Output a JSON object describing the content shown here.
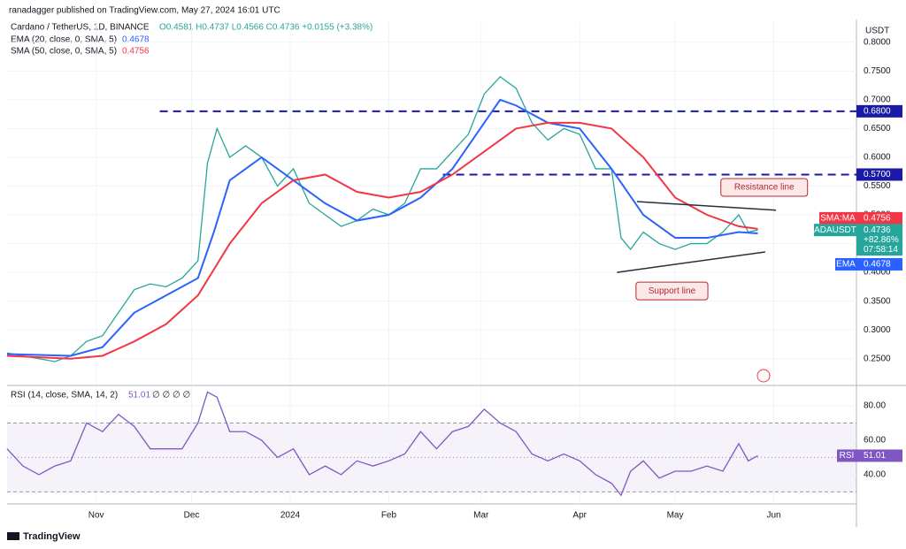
{
  "header": {
    "publisher": "ranadagger published on TradingView.com, May 27, 2024 16:01 UTC",
    "footer": "TradingView"
  },
  "chart_data": [
    {
      "type": "line",
      "title": "Cardano / TetherUS, 1D, BINANCE",
      "ohlc": "O0.4581 H0.4737 L0.4566 C0.4736 +0.0155 (+3.38%)",
      "currency": "USDT",
      "xlim": [
        0,
        267
      ],
      "xticks": [
        {
          "value": 28,
          "label": "Nov"
        },
        {
          "value": 58,
          "label": "Dec"
        },
        {
          "value": 89,
          "label": "2024"
        },
        {
          "value": 120,
          "label": "Feb"
        },
        {
          "value": 149,
          "label": "Mar"
        },
        {
          "value": 180,
          "label": "Apr"
        },
        {
          "value": 210,
          "label": "May"
        },
        {
          "value": 241,
          "label": "Jun"
        }
      ],
      "ylim": [
        0.205,
        0.835
      ],
      "yticks": [
        {
          "value": 0.25,
          "label": "0.2500"
        },
        {
          "value": 0.3,
          "label": "0.3000"
        },
        {
          "value": 0.35,
          "label": "0.3500"
        },
        {
          "value": 0.4,
          "label": "0.4000"
        },
        {
          "value": 0.45,
          "label": "0.4500"
        },
        {
          "value": 0.5,
          "label": "0.5000"
        },
        {
          "value": 0.55,
          "label": "0.5500"
        },
        {
          "value": 0.6,
          "label": "0.6000"
        },
        {
          "value": 0.65,
          "label": "0.6500"
        },
        {
          "value": 0.7,
          "label": "0.7000"
        },
        {
          "value": 0.75,
          "label": "0.7500"
        },
        {
          "value": 0.8,
          "label": "0.8000"
        }
      ],
      "series": [
        {
          "name": "ADAUSDT",
          "color": "#26a69a",
          "x": [
            0,
            5,
            10,
            15,
            20,
            25,
            30,
            35,
            40,
            45,
            50,
            55,
            60,
            63,
            66,
            70,
            75,
            80,
            85,
            90,
            95,
            100,
            105,
            110,
            115,
            120,
            125,
            130,
            135,
            140,
            145,
            150,
            155,
            160,
            165,
            170,
            175,
            180,
            185,
            190,
            193,
            196,
            200,
            205,
            210,
            215,
            220,
            225,
            230,
            233,
            236
          ],
          "values": [
            0.26,
            0.255,
            0.25,
            0.245,
            0.255,
            0.28,
            0.29,
            0.33,
            0.37,
            0.38,
            0.375,
            0.39,
            0.42,
            0.59,
            0.65,
            0.6,
            0.62,
            0.6,
            0.55,
            0.58,
            0.52,
            0.5,
            0.48,
            0.49,
            0.51,
            0.5,
            0.52,
            0.58,
            0.58,
            0.61,
            0.64,
            0.71,
            0.74,
            0.72,
            0.66,
            0.63,
            0.65,
            0.64,
            0.58,
            0.58,
            0.46,
            0.44,
            0.47,
            0.45,
            0.44,
            0.45,
            0.45,
            0.47,
            0.5,
            0.47,
            0.4736
          ]
        },
        {
          "name": "EMA (20, close, 0, SMA, 5)",
          "color": "#2962ff",
          "last_label": "0.4678",
          "x": [
            0,
            20,
            30,
            40,
            50,
            60,
            65,
            70,
            80,
            90,
            100,
            110,
            120,
            130,
            140,
            150,
            155,
            160,
            170,
            180,
            190,
            200,
            210,
            220,
            230,
            236
          ],
          "values": [
            0.258,
            0.255,
            0.27,
            0.33,
            0.36,
            0.39,
            0.47,
            0.56,
            0.6,
            0.56,
            0.52,
            0.49,
            0.5,
            0.53,
            0.58,
            0.66,
            0.7,
            0.69,
            0.66,
            0.65,
            0.58,
            0.5,
            0.46,
            0.46,
            0.47,
            0.4678
          ]
        },
        {
          "name": "SMA (50, close, 0, SMA, 5)",
          "color": "#f23645",
          "last_label": "0.4756",
          "x": [
            0,
            20,
            30,
            40,
            50,
            60,
            70,
            80,
            90,
            100,
            110,
            120,
            130,
            140,
            150,
            160,
            170,
            180,
            190,
            200,
            210,
            220,
            230,
            236
          ],
          "values": [
            0.255,
            0.25,
            0.255,
            0.28,
            0.31,
            0.36,
            0.45,
            0.52,
            0.56,
            0.57,
            0.54,
            0.53,
            0.54,
            0.57,
            0.61,
            0.65,
            0.66,
            0.66,
            0.65,
            0.6,
            0.53,
            0.5,
            0.48,
            0.4756
          ]
        }
      ],
      "levels": [
        {
          "value": 0.68,
          "label": "0.6800",
          "from": 48
        },
        {
          "value": 0.57,
          "label": "0.5700",
          "from": 137
        }
      ],
      "level_color": "#1a1aa6",
      "trendlines": [
        {
          "points": [
            [
              198,
              0.523
            ],
            [
              241.7,
              0.508
            ]
          ]
        },
        {
          "points": [
            [
              191.7,
              0.4
            ],
            [
              238.3,
              0.4355
            ]
          ]
        }
      ],
      "annotations": [
        {
          "text": "Resistance line",
          "x": 238,
          "y": 0.5477
        },
        {
          "text": "Support line",
          "x": 209,
          "y": 0.3677
        }
      ],
      "badges": [
        {
          "name": "SMA:MA",
          "value": 0.4756,
          "label": "0.4756",
          "color": "#f23645"
        },
        {
          "name": "ADAUSDT",
          "value": 0.4736,
          "label": "0.4736",
          "extra": [
            "+82.86%",
            "07:58:14"
          ],
          "color": "#26a69a"
        },
        {
          "name": "EMA",
          "value": 0.4678,
          "label": "0.4678",
          "color": "#2962ff"
        }
      ]
    },
    {
      "type": "line",
      "xlim": [
        0,
        267
      ],
      "ylim": [
        23,
        91.3
      ],
      "yticks": [
        {
          "value": 40,
          "label": "40.00"
        },
        {
          "value": 60,
          "label": "60.00"
        },
        {
          "value": 80,
          "label": "80.00"
        }
      ],
      "band": [
        30,
        70
      ],
      "midline": 50,
      "series": [
        {
          "name": "RSI (14, close, SMA, 14, 2)",
          "color": "#7e57c2",
          "last_label": "51.01",
          "suffix": "∅ ∅ ∅ ∅",
          "x": [
            0,
            5,
            10,
            15,
            20,
            25,
            30,
            35,
            40,
            45,
            50,
            55,
            60,
            63,
            66,
            70,
            75,
            80,
            85,
            90,
            95,
            100,
            105,
            110,
            115,
            120,
            125,
            130,
            135,
            140,
            145,
            150,
            155,
            160,
            165,
            170,
            175,
            180,
            185,
            190,
            193,
            196,
            200,
            205,
            210,
            215,
            220,
            225,
            230,
            233,
            236
          ],
          "values": [
            55,
            45,
            40,
            45,
            48,
            70,
            65,
            75,
            68,
            55,
            55,
            55,
            70,
            88,
            85,
            65,
            65,
            60,
            50,
            55,
            40,
            45,
            40,
            48,
            45,
            48,
            52,
            65,
            55,
            65,
            68,
            78,
            70,
            65,
            52,
            48,
            52,
            48,
            40,
            35,
            28,
            42,
            48,
            38,
            42,
            42,
            45,
            42,
            58,
            48,
            51.01
          ]
        }
      ],
      "badge": {
        "name": "RSI",
        "value": 51.01,
        "label": "51.01"
      }
    }
  ]
}
